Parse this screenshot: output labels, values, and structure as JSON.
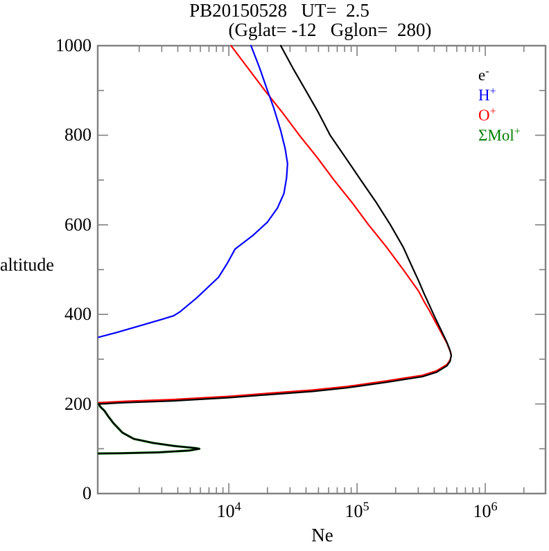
{
  "header": {
    "title": "PB20150528   UT=  2.5",
    "subtitle": "(Gglat= -12   Gglon=  280)"
  },
  "colors": {
    "axis": "#7f7f7f",
    "electron": "#000000",
    "h_plus": "#0000ff",
    "o_plus": "#ff0000",
    "mol_plus": "#007f00",
    "text": "#000000"
  },
  "chart_data": {
    "type": "line",
    "title": "PB20150528   UT=  2.5",
    "subtitle": "(Gglat= -12   Gglon=  280)",
    "xlabel": "Ne",
    "ylabel": "altitude",
    "x_scale": "log",
    "grid": false,
    "legend_position": "top-right",
    "xlim": [
      950,
      2950000
    ],
    "ylim": [
      0,
      1000
    ],
    "x_major_ticks": [
      {
        "value": 10000,
        "base": "10",
        "exp": "4"
      },
      {
        "value": 100000,
        "base": "10",
        "exp": "5"
      },
      {
        "value": 1000000,
        "base": "10",
        "exp": "6"
      }
    ],
    "x_minor_decades": [
      3,
      4,
      5,
      6
    ],
    "y_major_ticks": [
      0,
      200,
      400,
      600,
      800,
      1000
    ],
    "y_major_step": 200,
    "y_minor_step": 100,
    "legend": [
      {
        "text": "e",
        "sup": "-",
        "color": "#000000",
        "name": "electron"
      },
      {
        "text": "H",
        "sup": "+",
        "color": "#0000ff",
        "name": "h-plus"
      },
      {
        "text": "O",
        "sup": "+",
        "color": "#ff0000",
        "name": "o-plus"
      },
      {
        "text": "ΣMol",
        "sup": "+",
        "color": "#007f00",
        "name": "mol-plus"
      }
    ],
    "series": [
      {
        "name": "O+",
        "color": "#ff0000",
        "width": 2.2,
        "points": [
          [
            10400,
            1000
          ],
          [
            14100,
            950
          ],
          [
            19100,
            900
          ],
          [
            26300,
            850
          ],
          [
            35500,
            800
          ],
          [
            49000,
            750
          ],
          [
            66100,
            700
          ],
          [
            91200,
            650
          ],
          [
            123000,
            600
          ],
          [
            170000,
            550
          ],
          [
            229000,
            500
          ],
          [
            269000,
            472
          ],
          [
            302000,
            452
          ],
          [
            331000,
            430
          ],
          [
            367000,
            408
          ],
          [
            407000,
            384
          ],
          [
            452000,
            360
          ],
          [
            501000,
            336
          ],
          [
            537000,
            315
          ],
          [
            543000,
            308
          ],
          [
            531000,
            298
          ],
          [
            501000,
            288
          ],
          [
            417000,
            274
          ],
          [
            324000,
            264
          ],
          [
            224000,
            257
          ],
          [
            174000,
            252
          ],
          [
            83200,
            239
          ],
          [
            44700,
            231
          ],
          [
            18600,
            223
          ],
          [
            10000,
            217
          ],
          [
            3720,
            210
          ],
          [
            1550,
            206
          ],
          [
            966,
            203
          ]
        ]
      },
      {
        "name": "H+",
        "color": "#0000ff",
        "width": 2.2,
        "points": [
          [
            14900,
            1000
          ],
          [
            17400,
            950
          ],
          [
            20000,
            900
          ],
          [
            22400,
            861
          ],
          [
            25400,
            810
          ],
          [
            27500,
            770
          ],
          [
            28700,
            737
          ],
          [
            28200,
            705
          ],
          [
            26900,
            670
          ],
          [
            24000,
            638
          ],
          [
            20000,
            606
          ],
          [
            15500,
            577
          ],
          [
            11200,
            546
          ],
          [
            9770,
            515
          ],
          [
            8320,
            483
          ],
          [
            5620,
            437
          ],
          [
            4170,
            406
          ],
          [
            3720,
            397
          ],
          [
            3090,
            390
          ],
          [
            2040,
            375
          ],
          [
            1350,
            360
          ],
          [
            966,
            349
          ]
        ]
      },
      {
        "name": "SMol+",
        "color": "#007f00",
        "width": 3.2,
        "points": [
          [
            966,
            200
          ],
          [
            1000,
            193
          ],
          [
            1070,
            185
          ],
          [
            1150,
            172
          ],
          [
            1260,
            157
          ],
          [
            1480,
            136
          ],
          [
            1820,
            122
          ],
          [
            2570,
            113
          ],
          [
            3800,
            106
          ],
          [
            5500,
            101.5
          ],
          [
            5890,
            100
          ],
          [
            4900,
            96
          ],
          [
            2820,
            92
          ],
          [
            1410,
            90
          ],
          [
            966,
            89.5
          ]
        ]
      },
      {
        "name": "e-",
        "color": "#000000",
        "width": 2.2,
        "points": [
          [
            25400,
            1000
          ],
          [
            31600,
            950
          ],
          [
            39800,
            900
          ],
          [
            50100,
            850
          ],
          [
            61700,
            800
          ],
          [
            81300,
            750
          ],
          [
            107000,
            700
          ],
          [
            141000,
            650
          ],
          [
            182000,
            600
          ],
          [
            229000,
            550
          ],
          [
            275000,
            500
          ],
          [
            302000,
            475
          ],
          [
            331000,
            448
          ],
          [
            367000,
            420
          ],
          [
            407000,
            392
          ],
          [
            452000,
            365
          ],
          [
            501000,
            338
          ],
          [
            531000,
            320
          ],
          [
            543000,
            308
          ],
          [
            531000,
            295
          ],
          [
            501000,
            285
          ],
          [
            417000,
            271
          ],
          [
            324000,
            261
          ],
          [
            224000,
            254
          ],
          [
            174000,
            249
          ],
          [
            83200,
            236
          ],
          [
            44700,
            228
          ],
          [
            18600,
            220
          ],
          [
            10000,
            214
          ],
          [
            3720,
            207
          ],
          [
            1550,
            203
          ],
          [
            966,
            200
          ],
          [
            1000,
            193
          ],
          [
            1070,
            185
          ],
          [
            1150,
            172
          ],
          [
            1260,
            157
          ],
          [
            1480,
            136
          ],
          [
            1820,
            122
          ],
          [
            2570,
            113
          ],
          [
            3800,
            106
          ],
          [
            5500,
            101.5
          ],
          [
            5890,
            100
          ],
          [
            4900,
            96
          ],
          [
            2820,
            92
          ],
          [
            1410,
            90
          ],
          [
            966,
            89.5
          ]
        ]
      }
    ]
  }
}
